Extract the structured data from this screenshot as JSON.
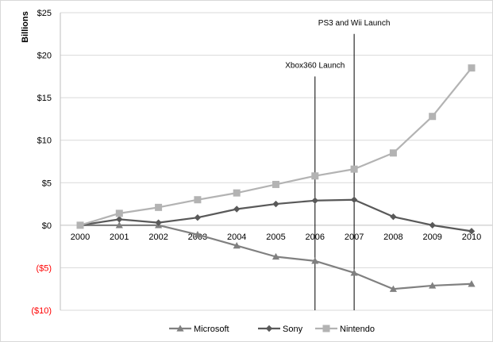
{
  "chart_data": {
    "type": "line",
    "title": "",
    "xlabel": "",
    "ylabel": "Billions",
    "x": [
      "2000",
      "2001",
      "2002",
      "2003",
      "2004",
      "2005",
      "2006",
      "2007",
      "2008",
      "2009",
      "2010"
    ],
    "ylim": [
      -10,
      25
    ],
    "yticks": [
      {
        "value": 25,
        "label": "$25",
        "color": "#000000"
      },
      {
        "value": 20,
        "label": "$20",
        "color": "#000000"
      },
      {
        "value": 15,
        "label": "$15",
        "color": "#000000"
      },
      {
        "value": 10,
        "label": "$10",
        "color": "#000000"
      },
      {
        "value": 5,
        "label": "$5",
        "color": "#000000"
      },
      {
        "value": 0,
        "label": "$0",
        "color": "#000000"
      },
      {
        "value": -5,
        "label": "($5)",
        "color": "#ff0000"
      },
      {
        "value": -10,
        "label": "($10)",
        "color": "#ff0000"
      }
    ],
    "grid": true,
    "legend": "bottom",
    "series": [
      {
        "name": "Microsoft",
        "marker": "triangle",
        "color": "#808080",
        "values": [
          0,
          0,
          0,
          -1.1,
          -2.4,
          -3.7,
          -4.2,
          -5.6,
          -7.5,
          -7.1,
          -6.9
        ]
      },
      {
        "name": "Sony",
        "marker": "diamond",
        "color": "#595959",
        "values": [
          0,
          0.7,
          0.3,
          0.9,
          1.9,
          2.5,
          2.9,
          3.0,
          1.0,
          0.0,
          -0.7
        ]
      },
      {
        "name": "Nintendo",
        "marker": "square",
        "color": "#b3b3b3",
        "values": [
          0,
          1.4,
          2.1,
          3.0,
          3.8,
          4.8,
          5.8,
          6.6,
          8.5,
          12.8,
          18.5
        ]
      }
    ],
    "annotations": [
      {
        "text": "Xbox360 Launch",
        "x": "2006",
        "line_top": 17.5
      },
      {
        "text": "PS3 and Wii Launch",
        "x": "2007",
        "line_top": 22.5
      }
    ]
  }
}
